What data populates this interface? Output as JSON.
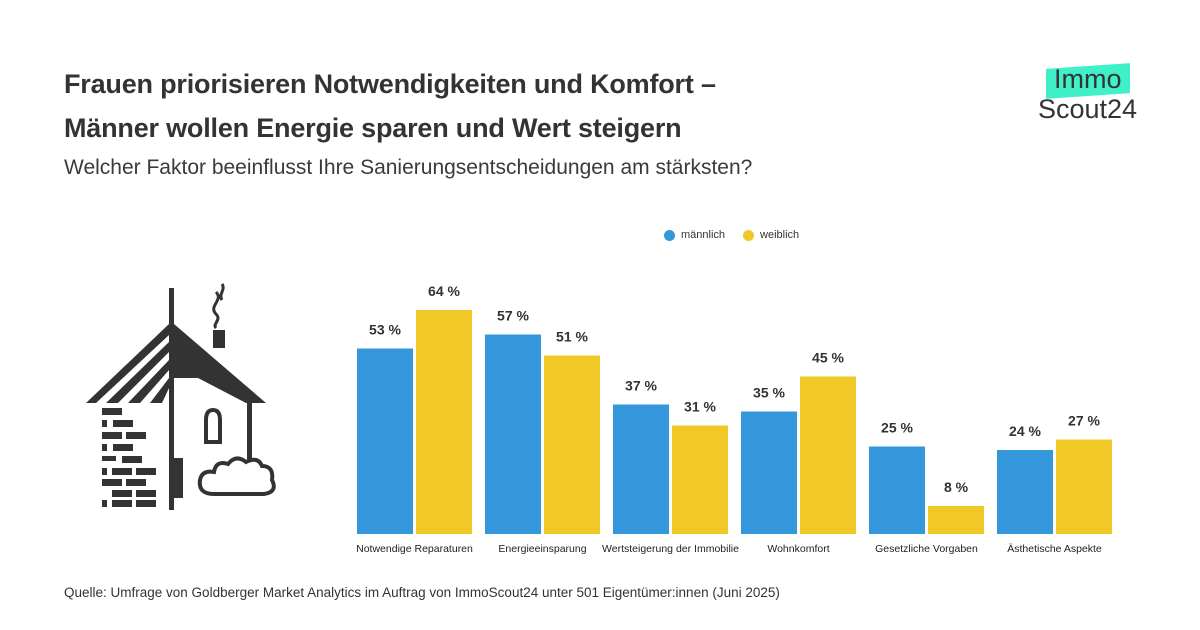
{
  "header": {
    "title_line1": "Frauen priorisieren Notwendigkeiten und Komfort –",
    "title_line2": "Männer wollen Energie sparen und Wert steigern",
    "subtitle": "Welcher Faktor beeinflusst Ihre Sanierungsentscheidungen am stärksten?"
  },
  "logo": {
    "line1": "Immo",
    "line2": "Scout24",
    "accent_color": "#3ff0c8"
  },
  "illustration": "house-icon",
  "chart_data": {
    "type": "bar",
    "title": "Welcher Faktor beeinflusst Ihre Sanierungsentscheidungen am stärksten?",
    "xlabel": "",
    "ylabel": "",
    "ylim": [
      0,
      64
    ],
    "grid": false,
    "legend_position": "top-right",
    "value_suffix": " %",
    "categories": [
      "Notwendige Reparaturen",
      "Energieeinsparung",
      "Wertsteigerung der Immobilie",
      "Wohnkomfort",
      "Gesetzliche Vorgaben",
      "Ästhetische Aspekte"
    ],
    "series": [
      {
        "name": "männlich",
        "color": "#3597db",
        "values": [
          53,
          57,
          37,
          35,
          25,
          24
        ]
      },
      {
        "name": "weiblich",
        "color": "#f1c927",
        "values": [
          64,
          51,
          31,
          45,
          8,
          27
        ]
      }
    ]
  },
  "footer": {
    "source": "Quelle: Umfrage von Goldberger Market Analytics im Auftrag von ImmoScout24 unter 501 Eigentümer:innen (Juni 2025)"
  }
}
